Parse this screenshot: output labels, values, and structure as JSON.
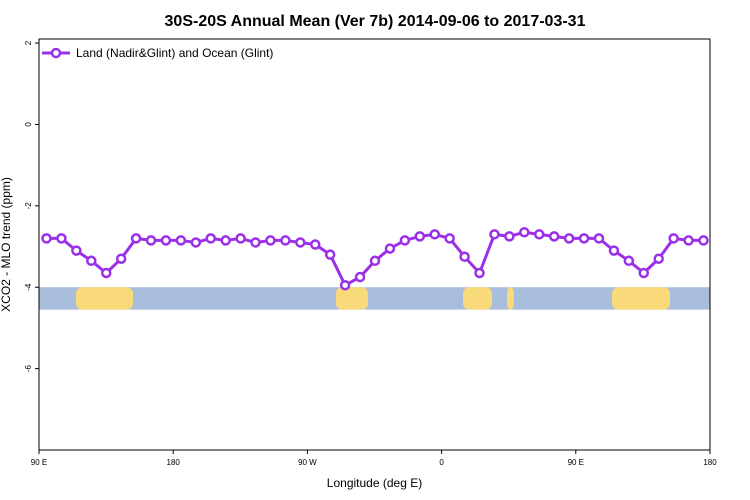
{
  "chart_data": {
    "type": "line",
    "title": "30S-20S Annual Mean (Ver 7b)   2014-09-06 to 2017-03-31",
    "xlabel": "Longitude (deg E)",
    "ylabel": "XCO2 - MLO trend (ppm)",
    "x_ticks": [
      "90 E",
      "180",
      "90 W",
      "0",
      "90 E",
      "180"
    ],
    "y_ticks": [
      "2",
      "0",
      "-2",
      "-4",
      "-6"
    ],
    "ylim": [
      -8,
      2.1
    ],
    "legend_position": "top-left",
    "series": [
      {
        "name": "Land (Nadir&Glint) and Ocean (Glint)",
        "color": "#9b30e8",
        "values": [
          -2.8,
          -2.8,
          -3.1,
          -3.35,
          -3.65,
          -3.3,
          -2.8,
          -2.85,
          -2.85,
          -2.85,
          -2.9,
          -2.8,
          -2.85,
          -2.8,
          -2.9,
          -2.85,
          -2.85,
          -2.9,
          -2.95,
          -3.2,
          -3.95,
          -3.75,
          -3.35,
          -3.05,
          -2.85,
          -2.75,
          -2.7,
          -2.8,
          -3.25,
          -3.65,
          -2.7,
          -2.75,
          -2.65,
          -2.7,
          -2.75,
          -2.8,
          -2.8,
          -2.8,
          -3.1,
          -3.35,
          -3.65,
          -3.3,
          -2.8,
          -2.85,
          -2.85
        ]
      }
    ],
    "map_strip_colors": {
      "ocean": "#a8bcdc",
      "land": "#f9da7a"
    }
  }
}
